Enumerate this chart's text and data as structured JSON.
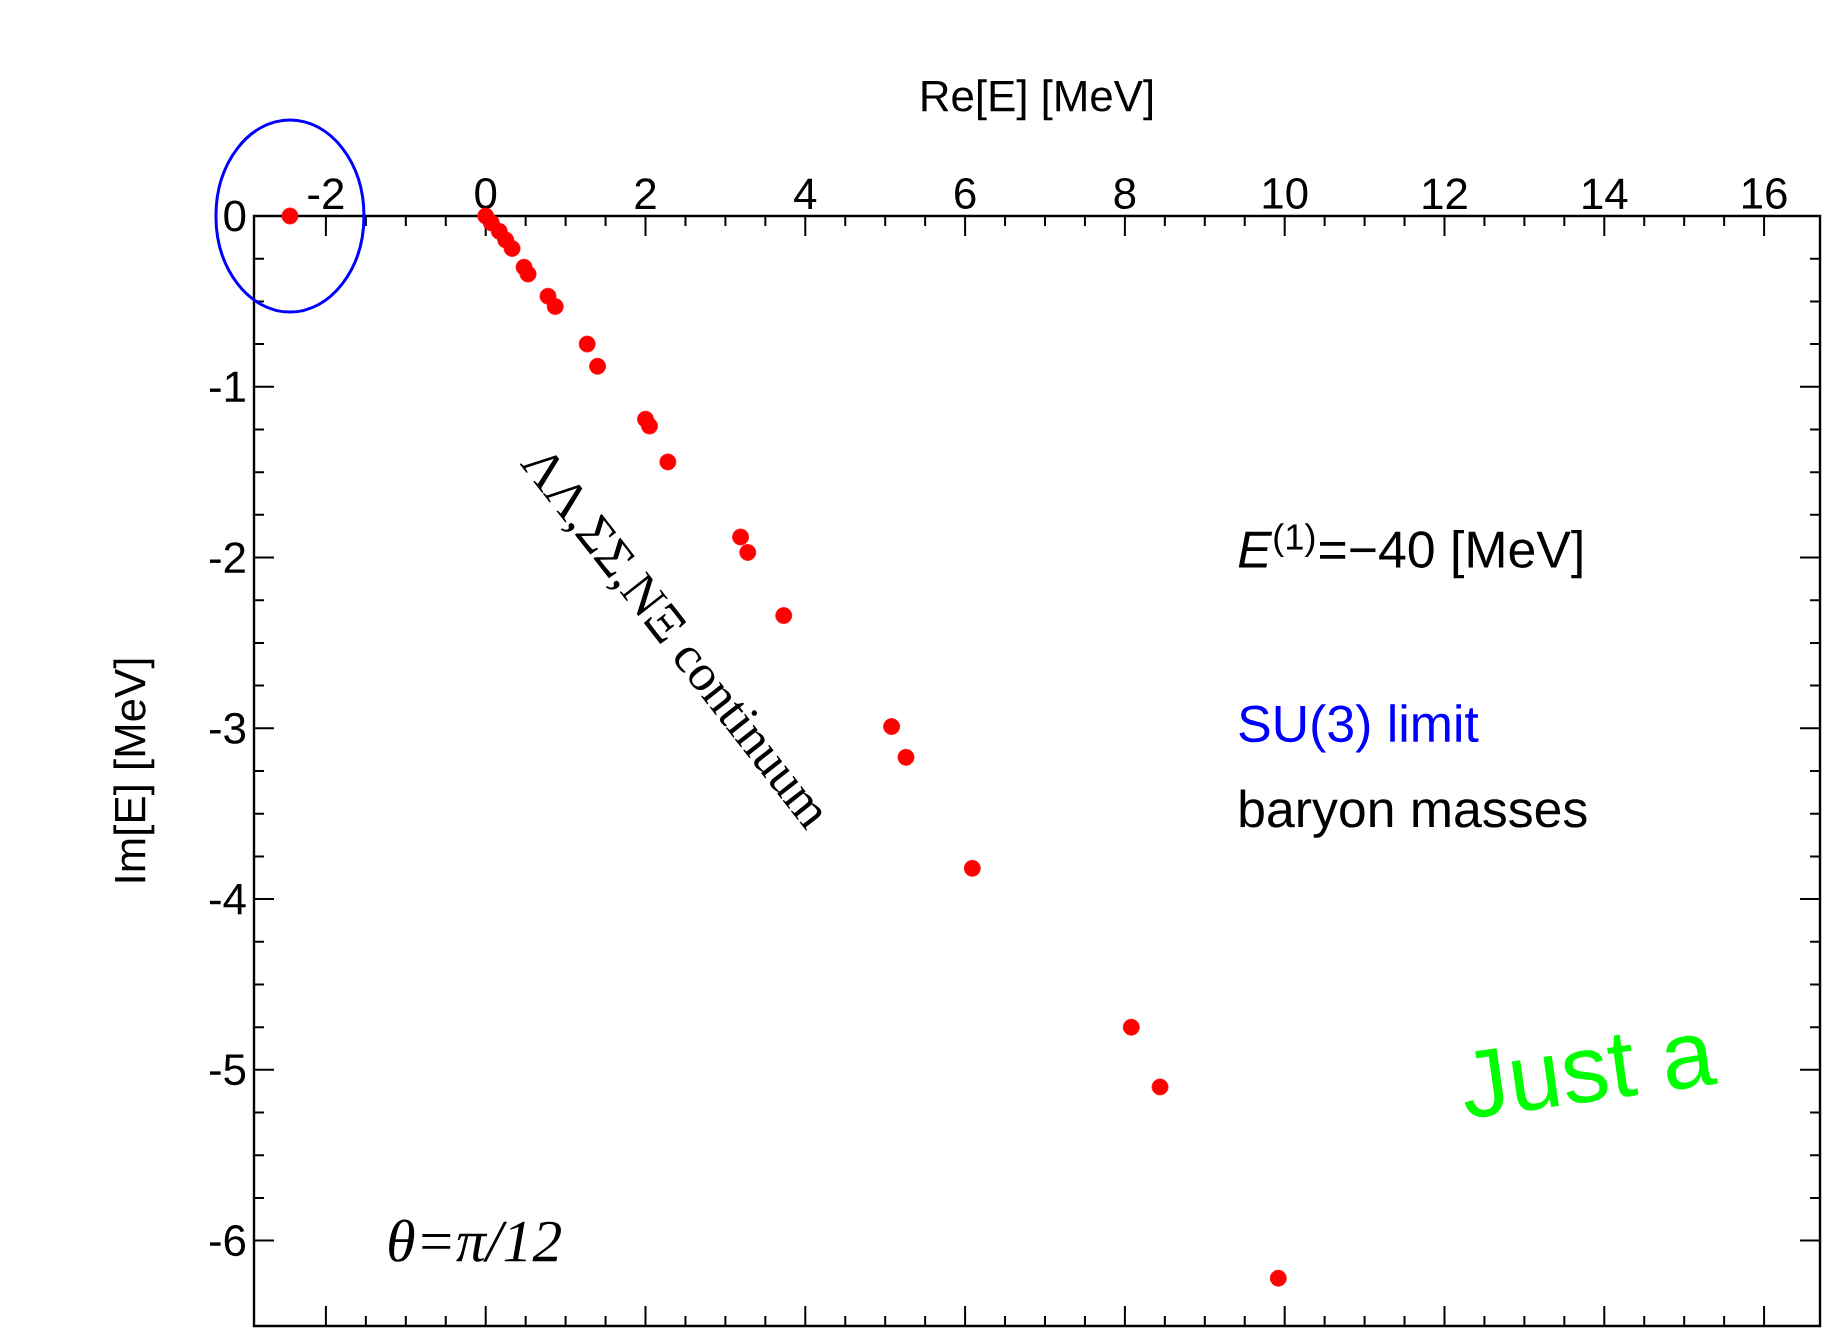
{
  "chart_data": {
    "type": "scatter",
    "xlabel": "Re[E]  [MeV]",
    "ylabel": "Im[E]  [MeV]",
    "xlim": [
      -2.9,
      16.7
    ],
    "ylim": [
      -6.5,
      0
    ],
    "xticks": [
      -2,
      0,
      2,
      4,
      6,
      8,
      10,
      12,
      14,
      16
    ],
    "yticks": [
      0,
      -1,
      -2,
      -3,
      -4,
      -5,
      -6
    ],
    "marker": "circle",
    "series": [
      {
        "color": "#ff0000",
        "x": [
          -2.45,
          0,
          0.07,
          0.17,
          0.25,
          0.33,
          0.48,
          0.53,
          0.78,
          0.87,
          1.27,
          1.4,
          2.0,
          2.05,
          2.28,
          3.19,
          3.28,
          3.73,
          5.08,
          5.26,
          6.09,
          8.08,
          8.44,
          9.92
        ],
        "values": [
          0,
          0,
          -0.04,
          -0.09,
          -0.14,
          -0.19,
          -0.3,
          -0.34,
          -0.47,
          -0.53,
          -0.75,
          -0.88,
          -1.19,
          -1.23,
          -1.44,
          -1.88,
          -1.97,
          -2.34,
          -2.99,
          -3.17,
          -3.82,
          -4.75,
          -5.1,
          -6.22
        ]
      }
    ],
    "annotations": [
      "ΛΛ,ΣΣ,NΞ continuum",
      "*E*$^{(1)}$=−40 [MeV]",
      "SU(3) limit",
      "baryon masses",
      "θ=π/12",
      "Just a"
    ]
  }
}
